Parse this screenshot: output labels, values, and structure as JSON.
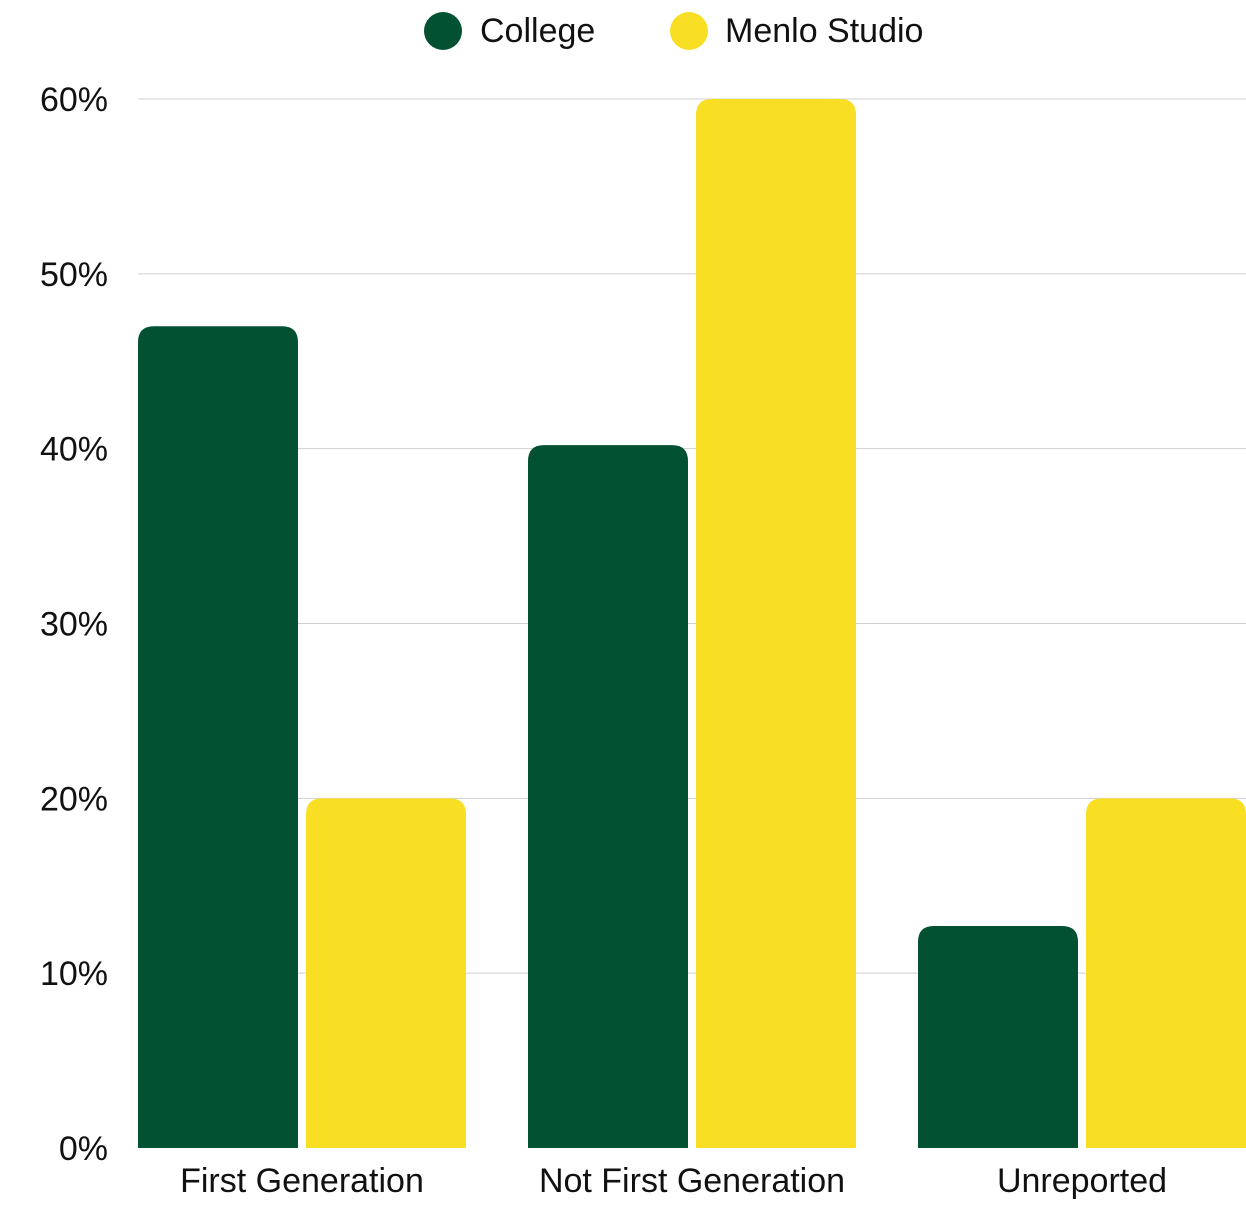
{
  "chart_data": {
    "type": "bar",
    "categories": [
      "First Generation",
      "Not First Generation",
      "Unreported"
    ],
    "series": [
      {
        "name": "College",
        "values": [
          47,
          40.2,
          12.7
        ],
        "color": "#035133"
      },
      {
        "name": "Menlo Studio",
        "values": [
          20,
          60,
          20
        ],
        "color": "#f9df23"
      }
    ],
    "yticks": [
      "0%",
      "10%",
      "20%",
      "30%",
      "40%",
      "50%",
      "60%"
    ],
    "ylim": [
      0,
      60
    ],
    "grid": true,
    "legend_position": "top-center",
    "title": "",
    "xlabel": "",
    "ylabel": ""
  }
}
